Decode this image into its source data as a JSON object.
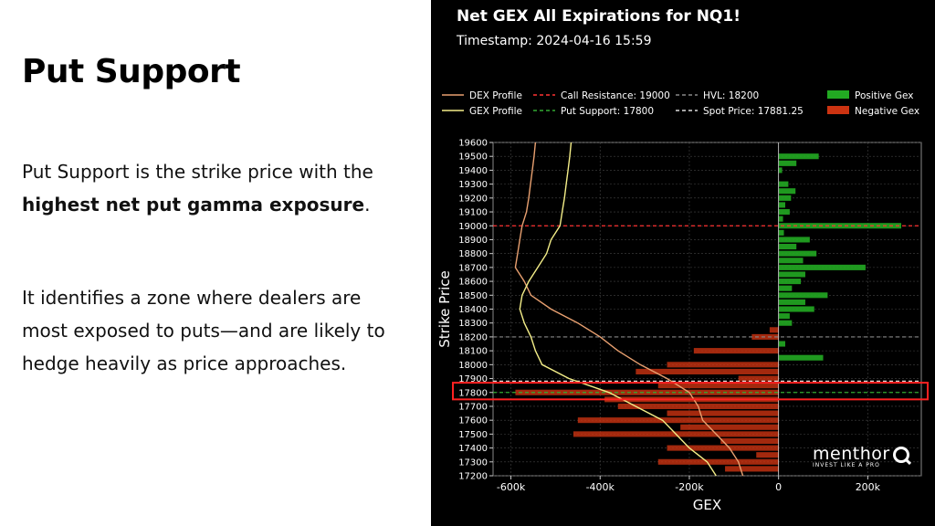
{
  "slide": {
    "heading": "Put Support",
    "para1_prefix": "Put Support is the strike price with the ",
    "para1_bold": "highest net put gamma exposure",
    "para1_suffix": ".",
    "para2": "It identifies a zone where dealers are most exposed to puts—and are likely to hedge heavily as price approaches."
  },
  "logo": {
    "name": "menthor",
    "tagline": "INVEST LIKE A PRO"
  },
  "colors": {
    "chart_bg": "#000000",
    "positive_gex": "#22aa22",
    "negative_gex": "#cc3311",
    "dex_profile": "#e8a070",
    "gex_profile": "#f4ee88",
    "call_resistance": "#ff3333",
    "put_support": "#33aa33",
    "hvl": "#888888",
    "spot_price": "#dddddd",
    "highlight_box": "#ff2222",
    "grid": "#444444"
  },
  "chart_data": {
    "type": "bar",
    "orientation": "horizontal",
    "title": "Net GEX All Expirations for NQ1!",
    "subtitle": "Timestamp: 2024-04-16 15:59",
    "xlabel": "GEX",
    "ylabel": "Strike Price",
    "xlim": [
      -640000,
      320000
    ],
    "ylim": [
      17200,
      19600
    ],
    "grid": true,
    "legend_position": "top",
    "x_ticks": [
      -600000,
      -400000,
      -200000,
      0,
      200000
    ],
    "x_tick_labels": [
      "-600k",
      "-400k",
      "-200k",
      "0",
      "200k"
    ],
    "y_ticks": [
      17200,
      17300,
      17400,
      17500,
      17600,
      17700,
      17800,
      17900,
      18000,
      18100,
      18200,
      18300,
      18400,
      18500,
      18600,
      18700,
      18800,
      18900,
      19000,
      19100,
      19200,
      19300,
      19400,
      19500,
      19600
    ],
    "y_tick_labels": [
      "17200",
      "17300",
      "17400",
      "17500",
      "17600",
      "17700",
      "17800",
      "17900",
      "18000",
      "18100",
      "18200",
      "18300",
      "18400",
      "18500",
      "18600",
      "18700",
      "18800",
      "18900",
      "19000",
      "19100",
      "19200",
      "19300",
      "19400",
      "19500",
      "19600"
    ],
    "legend": [
      {
        "label": "DEX Profile",
        "kind": "line",
        "color": "#e8a070",
        "dash": false
      },
      {
        "label": "Call Resistance: 19000",
        "kind": "line",
        "color": "#ff3333",
        "dash": true
      },
      {
        "label": "HVL: 18200",
        "kind": "line",
        "color": "#888888",
        "dash": true
      },
      {
        "label": "Positive Gex",
        "kind": "box",
        "color": "#22aa22"
      },
      {
        "label": "GEX Profile",
        "kind": "line",
        "color": "#f4ee88",
        "dash": false
      },
      {
        "label": "Put Support: 17800",
        "kind": "line",
        "color": "#33aa33",
        "dash": true
      },
      {
        "label": "Spot Price: 17881.25",
        "kind": "line",
        "color": "#dddddd",
        "dash": true
      },
      {
        "label": "Negative Gex",
        "kind": "box",
        "color": "#cc3311"
      }
    ],
    "levels": {
      "call_resistance": 19000,
      "put_support": 17800,
      "hvl": 18200,
      "spot_price": 17881.25
    },
    "highlight": {
      "strike_low": 17750,
      "strike_high": 17870
    },
    "bars": [
      {
        "strike": 19500,
        "gex": 90000
      },
      {
        "strike": 19450,
        "gex": 40000
      },
      {
        "strike": 19400,
        "gex": 8000
      },
      {
        "strike": 19300,
        "gex": 22000
      },
      {
        "strike": 19250,
        "gex": 38000
      },
      {
        "strike": 19200,
        "gex": 28000
      },
      {
        "strike": 19150,
        "gex": 15000
      },
      {
        "strike": 19100,
        "gex": 25000
      },
      {
        "strike": 19050,
        "gex": 10000
      },
      {
        "strike": 19000,
        "gex": 275000
      },
      {
        "strike": 18950,
        "gex": 12000
      },
      {
        "strike": 18900,
        "gex": 70000
      },
      {
        "strike": 18850,
        "gex": 40000
      },
      {
        "strike": 18800,
        "gex": 85000
      },
      {
        "strike": 18750,
        "gex": 55000
      },
      {
        "strike": 18700,
        "gex": 195000
      },
      {
        "strike": 18650,
        "gex": 60000
      },
      {
        "strike": 18600,
        "gex": 50000
      },
      {
        "strike": 18550,
        "gex": 30000
      },
      {
        "strike": 18500,
        "gex": 110000
      },
      {
        "strike": 18450,
        "gex": 60000
      },
      {
        "strike": 18400,
        "gex": 80000
      },
      {
        "strike": 18350,
        "gex": 25000
      },
      {
        "strike": 18300,
        "gex": 30000
      },
      {
        "strike": 18250,
        "gex": -20000
      },
      {
        "strike": 18200,
        "gex": -60000
      },
      {
        "strike": 18150,
        "gex": 15000
      },
      {
        "strike": 18100,
        "gex": -190000
      },
      {
        "strike": 18050,
        "gex": 100000
      },
      {
        "strike": 18000,
        "gex": -250000
      },
      {
        "strike": 17950,
        "gex": -320000
      },
      {
        "strike": 17900,
        "gex": -90000
      },
      {
        "strike": 17850,
        "gex": -270000
      },
      {
        "strike": 17800,
        "gex": -590000
      },
      {
        "strike": 17750,
        "gex": -390000
      },
      {
        "strike": 17700,
        "gex": -360000
      },
      {
        "strike": 17650,
        "gex": -250000
      },
      {
        "strike": 17600,
        "gex": -450000
      },
      {
        "strike": 17550,
        "gex": -220000
      },
      {
        "strike": 17500,
        "gex": -460000
      },
      {
        "strike": 17450,
        "gex": -130000
      },
      {
        "strike": 17400,
        "gex": -250000
      },
      {
        "strike": 17350,
        "gex": -50000
      },
      {
        "strike": 17300,
        "gex": -270000
      },
      {
        "strike": 17250,
        "gex": -120000
      }
    ],
    "dex_profile": {
      "strikes": [
        19600,
        19500,
        19400,
        19300,
        19200,
        19100,
        19000,
        18900,
        18800,
        18700,
        18600,
        18500,
        18400,
        18300,
        18200,
        18100,
        18000,
        17900,
        17800,
        17700,
        17600,
        17500,
        17400,
        17300,
        17200
      ],
      "values": [
        -545000,
        -548000,
        -552000,
        -556000,
        -560000,
        -565000,
        -575000,
        -580000,
        -585000,
        -590000,
        -570000,
        -555000,
        -510000,
        -450000,
        -400000,
        -360000,
        -310000,
        -250000,
        -200000,
        -180000,
        -170000,
        -140000,
        -110000,
        -90000,
        -80000
      ]
    },
    "gex_profile": {
      "strikes": [
        19600,
        19500,
        19400,
        19300,
        19200,
        19100,
        19000,
        18900,
        18800,
        18700,
        18600,
        18500,
        18400,
        18300,
        18200,
        18100,
        18000,
        17900,
        17800,
        17700,
        17600,
        17500,
        17400,
        17300,
        17200
      ],
      "values": [
        -465000,
        -468000,
        -472000,
        -476000,
        -480000,
        -485000,
        -490000,
        -510000,
        -520000,
        -540000,
        -560000,
        -575000,
        -580000,
        -570000,
        -555000,
        -545000,
        -530000,
        -470000,
        -380000,
        -320000,
        -260000,
        -230000,
        -200000,
        -160000,
        -140000
      ]
    }
  }
}
